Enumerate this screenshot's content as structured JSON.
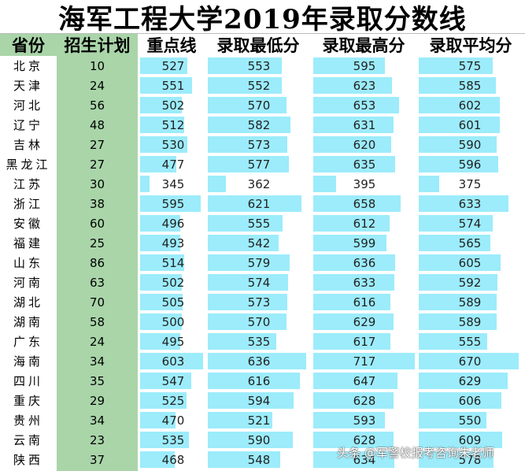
{
  "title": "海军工程大学2019年录取分数线",
  "headers": [
    "省份",
    "招生计划",
    "重点线",
    "录取最低分",
    "录取最高分",
    "录取平均分"
  ],
  "rows": [
    {
      "province": "北京",
      "quota": "10",
      "key_line": "527",
      "min": "553",
      "max": "595",
      "avg": "575"
    },
    {
      "province": "天津",
      "quota": "24",
      "key_line": "551",
      "min": "552",
      "max": "623",
      "avg": "585"
    },
    {
      "province": "河北",
      "quota": "56",
      "key_line": "502",
      "min": "570",
      "max": "653",
      "avg": "602"
    },
    {
      "province": "辽宁",
      "quota": "48",
      "key_line": "512",
      "min": "582",
      "max": "631",
      "avg": "601"
    },
    {
      "province": "吉林",
      "quota": "27",
      "key_line": "530",
      "min": "573",
      "max": "620",
      "avg": "590"
    },
    {
      "province": "黑龙江",
      "quota": "27",
      "key_line": "477",
      "min": "577",
      "max": "635",
      "avg": "596"
    },
    {
      "province": "江苏",
      "quota": "30",
      "key_line": "345",
      "min": "362",
      "max": "395",
      "avg": "375"
    },
    {
      "province": "浙江",
      "quota": "38",
      "key_line": "595",
      "min": "621",
      "max": "658",
      "avg": "633"
    },
    {
      "province": "安徽",
      "quota": "60",
      "key_line": "496",
      "min": "555",
      "max": "612",
      "avg": "574"
    },
    {
      "province": "福建",
      "quota": "25",
      "key_line": "493",
      "min": "542",
      "max": "599",
      "avg": "565"
    },
    {
      "province": "山东",
      "quota": "86",
      "key_line": "514",
      "min": "579",
      "max": "636",
      "avg": "605"
    },
    {
      "province": "河南",
      "quota": "63",
      "key_line": "502",
      "min": "574",
      "max": "633",
      "avg": "592"
    },
    {
      "province": "湖北",
      "quota": "70",
      "key_line": "505",
      "min": "573",
      "max": "616",
      "avg": "589"
    },
    {
      "province": "湖南",
      "quota": "58",
      "key_line": "500",
      "min": "570",
      "max": "629",
      "avg": "589"
    },
    {
      "province": "广东",
      "quota": "24",
      "key_line": "495",
      "min": "535",
      "max": "617",
      "avg": "555"
    },
    {
      "province": "海南",
      "quota": "34",
      "key_line": "603",
      "min": "636",
      "max": "717",
      "avg": "670"
    },
    {
      "province": "四川",
      "quota": "35",
      "key_line": "547",
      "min": "616",
      "max": "647",
      "avg": "629"
    },
    {
      "province": "重庆",
      "quota": "29",
      "key_line": "525",
      "min": "594",
      "max": "628",
      "avg": "606"
    },
    {
      "province": "贵州",
      "quota": "34",
      "key_line": "470",
      "min": "521",
      "max": "593",
      "avg": "550"
    },
    {
      "province": "云南",
      "quota": "23",
      "key_line": "535",
      "min": "590",
      "max": "628",
      "avg": "609"
    },
    {
      "province": "陕西",
      "quota": "37",
      "key_line": "468",
      "min": "548",
      "max": "634",
      "avg": "578"
    }
  ],
  "watermark": "头条 @军警校报考咨询朱老师",
  "colors": {
    "header_green": "#a9d5a9",
    "bar_cyan": "#9cecfb"
  }
}
